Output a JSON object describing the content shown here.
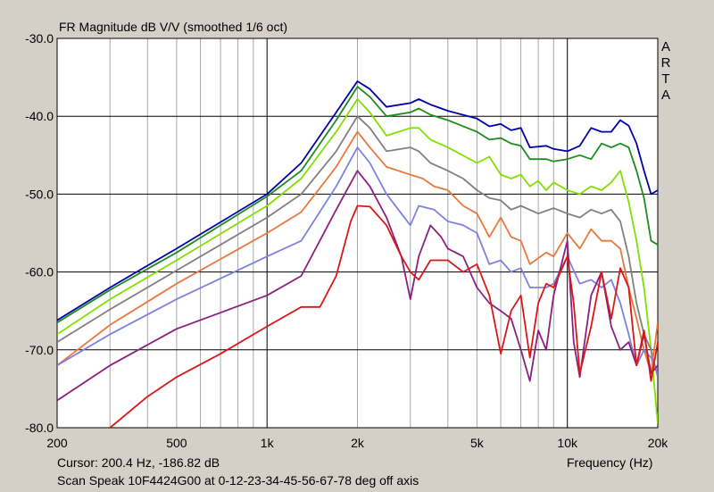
{
  "title": "FR Magnitude dB V/V (smoothed 1/6 oct)",
  "brand": [
    "A",
    "R",
    "T",
    "A"
  ],
  "cursor_readout": "Cursor: 200.4 Hz, -186.82 dB",
  "caption": "Scan Speak 10F4424G00 at 0-12-23-34-45-56-67-78 deg off axis",
  "colors": {
    "background": "#d4d0c8",
    "plot": "#ffffff",
    "grid_major": "#000000",
    "grid_minor": "#a8a8a8"
  },
  "chart_data": {
    "type": "line",
    "title": "FR Magnitude dB V/V (smoothed 1/6 oct)",
    "xlabel": "Frequency (Hz)",
    "ylabel": "",
    "xscale": "log",
    "xlim": [
      200,
      20000
    ],
    "ylim": [
      -80,
      -30
    ],
    "grid": true,
    "x_ticks": [
      {
        "v": 200,
        "label": "200"
      },
      {
        "v": 500,
        "label": "500"
      },
      {
        "v": 1000,
        "label": "1k"
      },
      {
        "v": 2000,
        "label": "2k"
      },
      {
        "v": 5000,
        "label": "5k"
      },
      {
        "v": 10000,
        "label": "10k"
      },
      {
        "v": 20000,
        "label": "20k"
      }
    ],
    "x_major_lines": [
      1000,
      10000
    ],
    "x_minor_lines": [
      300,
      400,
      500,
      600,
      700,
      800,
      900,
      2000,
      3000,
      4000,
      5000,
      6000,
      7000,
      8000,
      9000
    ],
    "y_ticks": [
      {
        "v": -30,
        "label": "-30.0"
      },
      {
        "v": -40,
        "label": "-40.0"
      },
      {
        "v": -50,
        "label": "-50.0"
      },
      {
        "v": -60,
        "label": "-60.0"
      },
      {
        "v": -70,
        "label": "-70.0"
      },
      {
        "v": -80,
        "label": "-80.0"
      }
    ],
    "series": [
      {
        "color": "#0000a8",
        "points": [
          [
            200,
            -66.2
          ],
          [
            300,
            -62
          ],
          [
            500,
            -57
          ],
          [
            1000,
            -50
          ],
          [
            1300,
            -46
          ],
          [
            1700,
            -39.5
          ],
          [
            2000,
            -35.5
          ],
          [
            2200,
            -36.5
          ],
          [
            2500,
            -38.8
          ],
          [
            3000,
            -38.3
          ],
          [
            3200,
            -37.8
          ],
          [
            3500,
            -38.5
          ],
          [
            4000,
            -39.3
          ],
          [
            5000,
            -40.3
          ],
          [
            5500,
            -41.3
          ],
          [
            6000,
            -41
          ],
          [
            6500,
            -41.8
          ],
          [
            7000,
            -41.5
          ],
          [
            7500,
            -44
          ],
          [
            8500,
            -43.8
          ],
          [
            9000,
            -44.2
          ],
          [
            10000,
            -44.5
          ],
          [
            11000,
            -43.8
          ],
          [
            12000,
            -41.5
          ],
          [
            13000,
            -42
          ],
          [
            14000,
            -42
          ],
          [
            15000,
            -40.5
          ],
          [
            16000,
            -41.2
          ],
          [
            17000,
            -43.5
          ],
          [
            18000,
            -47
          ],
          [
            19000,
            -50
          ],
          [
            20000,
            -49.5
          ]
        ]
      },
      {
        "color": "#1e8c1e",
        "points": [
          [
            200,
            -66.5
          ],
          [
            300,
            -62.3
          ],
          [
            500,
            -57.5
          ],
          [
            1000,
            -50.3
          ],
          [
            1300,
            -47
          ],
          [
            1700,
            -40.5
          ],
          [
            2000,
            -36.2
          ],
          [
            2200,
            -37.5
          ],
          [
            2500,
            -40
          ],
          [
            3000,
            -39.5
          ],
          [
            3200,
            -39
          ],
          [
            3500,
            -39.8
          ],
          [
            4000,
            -40.5
          ],
          [
            5000,
            -42
          ],
          [
            5500,
            -43
          ],
          [
            6000,
            -42.8
          ],
          [
            6500,
            -43.5
          ],
          [
            7000,
            -43.8
          ],
          [
            7500,
            -45.5
          ],
          [
            8500,
            -45.5
          ],
          [
            9000,
            -45.8
          ],
          [
            10000,
            -45.5
          ],
          [
            11000,
            -45
          ],
          [
            12000,
            -45.5
          ],
          [
            13000,
            -43.5
          ],
          [
            14000,
            -44
          ],
          [
            15000,
            -43.5
          ],
          [
            16000,
            -44
          ],
          [
            17000,
            -47
          ],
          [
            18000,
            -50.5
          ],
          [
            19000,
            -56
          ],
          [
            20000,
            -56.5
          ]
        ]
      },
      {
        "color": "#80e000",
        "points": [
          [
            200,
            -68
          ],
          [
            300,
            -63.5
          ],
          [
            500,
            -58.5
          ],
          [
            1000,
            -51.5
          ],
          [
            1300,
            -48
          ],
          [
            1700,
            -42
          ],
          [
            2000,
            -37.8
          ],
          [
            2200,
            -39.5
          ],
          [
            2500,
            -42.5
          ],
          [
            3000,
            -41.5
          ],
          [
            3200,
            -41.5
          ],
          [
            3500,
            -43
          ],
          [
            4000,
            -44
          ],
          [
            5000,
            -46
          ],
          [
            5500,
            -45.2
          ],
          [
            6000,
            -47.5
          ],
          [
            6500,
            -48
          ],
          [
            7000,
            -47.5
          ],
          [
            7500,
            -49
          ],
          [
            8000,
            -48.3
          ],
          [
            8500,
            -49.5
          ],
          [
            9000,
            -48.5
          ],
          [
            10000,
            -49.5
          ],
          [
            11000,
            -50
          ],
          [
            12000,
            -49
          ],
          [
            13000,
            -49.5
          ],
          [
            14000,
            -48.5
          ],
          [
            15000,
            -47
          ],
          [
            16000,
            -51
          ],
          [
            17000,
            -56
          ],
          [
            18000,
            -62
          ],
          [
            19000,
            -70
          ],
          [
            20000,
            -79.5
          ]
        ]
      },
      {
        "color": "#808080",
        "points": [
          [
            200,
            -69
          ],
          [
            300,
            -64.8
          ],
          [
            500,
            -59.8
          ],
          [
            1000,
            -53
          ],
          [
            1300,
            -50
          ],
          [
            1700,
            -44.5
          ],
          [
            2000,
            -40
          ],
          [
            2200,
            -41.5
          ],
          [
            2500,
            -44.5
          ],
          [
            3000,
            -44
          ],
          [
            3200,
            -44.5
          ],
          [
            3500,
            -46
          ],
          [
            4000,
            -47
          ],
          [
            4500,
            -48
          ],
          [
            5000,
            -49.5
          ],
          [
            5500,
            -50.5
          ],
          [
            6000,
            -50.8
          ],
          [
            6500,
            -52
          ],
          [
            7000,
            -51.5
          ],
          [
            8000,
            -52.5
          ],
          [
            9000,
            -51.8
          ],
          [
            10000,
            -52.5
          ],
          [
            11000,
            -53
          ],
          [
            12000,
            -52
          ],
          [
            13000,
            -52.5
          ],
          [
            14000,
            -52
          ],
          [
            15000,
            -53.5
          ],
          [
            16000,
            -58
          ],
          [
            17000,
            -64
          ],
          [
            18000,
            -68
          ],
          [
            19000,
            -70
          ],
          [
            20000,
            -73.5
          ]
        ]
      },
      {
        "color": "#e8783c",
        "points": [
          [
            200,
            -72
          ],
          [
            300,
            -66.8
          ],
          [
            500,
            -61.5
          ],
          [
            1000,
            -55
          ],
          [
            1300,
            -52.3
          ],
          [
            1700,
            -46.5
          ],
          [
            2000,
            -42
          ],
          [
            2200,
            -44
          ],
          [
            2500,
            -46.5
          ],
          [
            3000,
            -47.5
          ],
          [
            3300,
            -48
          ],
          [
            3600,
            -49
          ],
          [
            4000,
            -49.5
          ],
          [
            4500,
            -51.5
          ],
          [
            5000,
            -52.5
          ],
          [
            5500,
            -55.5
          ],
          [
            6000,
            -53
          ],
          [
            6500,
            -55.5
          ],
          [
            7000,
            -56
          ],
          [
            7500,
            -59
          ],
          [
            8500,
            -57.5
          ],
          [
            9000,
            -58
          ],
          [
            10000,
            -55
          ],
          [
            11000,
            -57
          ],
          [
            12000,
            -54.5
          ],
          [
            13000,
            -56
          ],
          [
            14000,
            -56
          ],
          [
            15000,
            -57
          ],
          [
            16000,
            -62
          ],
          [
            17000,
            -66
          ],
          [
            18000,
            -70
          ],
          [
            19000,
            -73
          ],
          [
            20000,
            -66.5
          ]
        ]
      },
      {
        "color": "#8080e0",
        "points": [
          [
            200,
            -72
          ],
          [
            300,
            -68
          ],
          [
            500,
            -63.5
          ],
          [
            1000,
            -58
          ],
          [
            1300,
            -56
          ],
          [
            1700,
            -49
          ],
          [
            2000,
            -44
          ],
          [
            2200,
            -46
          ],
          [
            2500,
            -50
          ],
          [
            2800,
            -52.5
          ],
          [
            3000,
            -54
          ],
          [
            3200,
            -51.5
          ],
          [
            3600,
            -52
          ],
          [
            4000,
            -53.5
          ],
          [
            4500,
            -54
          ],
          [
            5000,
            -55
          ],
          [
            5500,
            -59
          ],
          [
            6000,
            -58.5
          ],
          [
            6500,
            -60
          ],
          [
            7000,
            -59.5
          ],
          [
            7500,
            -62
          ],
          [
            8500,
            -62
          ],
          [
            9000,
            -61.5
          ],
          [
            10000,
            -58
          ],
          [
            11000,
            -61.5
          ],
          [
            12000,
            -61
          ],
          [
            13000,
            -62
          ],
          [
            14000,
            -61
          ],
          [
            15000,
            -64
          ],
          [
            16000,
            -68
          ],
          [
            17000,
            -72
          ],
          [
            18000,
            -70
          ],
          [
            19000,
            -71
          ],
          [
            20000,
            -73
          ]
        ]
      },
      {
        "color": "#8c2080",
        "points": [
          [
            200,
            -76.5
          ],
          [
            300,
            -72
          ],
          [
            500,
            -67.3
          ],
          [
            1000,
            -63
          ],
          [
            1300,
            -60.5
          ],
          [
            1700,
            -52
          ],
          [
            2000,
            -47
          ],
          [
            2200,
            -49
          ],
          [
            2500,
            -53
          ],
          [
            2800,
            -58
          ],
          [
            3000,
            -63.5
          ],
          [
            3200,
            -58
          ],
          [
            3500,
            -54
          ],
          [
            3800,
            -55.5
          ],
          [
            4000,
            -57
          ],
          [
            4500,
            -58
          ],
          [
            5000,
            -62
          ],
          [
            5500,
            -64
          ],
          [
            6000,
            -65
          ],
          [
            6500,
            -66
          ],
          [
            7000,
            -70
          ],
          [
            7500,
            -74
          ],
          [
            8000,
            -67.5
          ],
          [
            8500,
            -70
          ],
          [
            9000,
            -63
          ],
          [
            10000,
            -56
          ],
          [
            10500,
            -69
          ],
          [
            11000,
            -73.5
          ],
          [
            12000,
            -63
          ],
          [
            13000,
            -60
          ],
          [
            14000,
            -67
          ],
          [
            15000,
            -70
          ],
          [
            16000,
            -69
          ],
          [
            17000,
            -72
          ],
          [
            18000,
            -68
          ],
          [
            19000,
            -73
          ],
          [
            20000,
            -72
          ]
        ]
      },
      {
        "color": "#d81818",
        "points": [
          [
            300,
            -80
          ],
          [
            400,
            -76
          ],
          [
            500,
            -73.5
          ],
          [
            700,
            -70.5
          ],
          [
            1000,
            -67
          ],
          [
            1300,
            -64.5
          ],
          [
            1500,
            -64.5
          ],
          [
            1700,
            -60.5
          ],
          [
            1900,
            -53.5
          ],
          [
            2000,
            -51.5
          ],
          [
            2200,
            -51.6
          ],
          [
            2500,
            -54
          ],
          [
            2800,
            -58
          ],
          [
            3000,
            -60
          ],
          [
            3200,
            -61
          ],
          [
            3500,
            -58.5
          ],
          [
            4000,
            -58.5
          ],
          [
            4500,
            -60
          ],
          [
            5000,
            -59
          ],
          [
            5500,
            -63
          ],
          [
            6000,
            -70.5
          ],
          [
            6500,
            -65
          ],
          [
            7000,
            -63
          ],
          [
            7500,
            -71
          ],
          [
            8000,
            -64
          ],
          [
            8500,
            -61.5
          ],
          [
            9000,
            -62
          ],
          [
            10000,
            -58
          ],
          [
            10500,
            -64
          ],
          [
            11000,
            -73
          ],
          [
            12000,
            -67
          ],
          [
            13000,
            -60
          ],
          [
            14000,
            -66
          ],
          [
            15000,
            -59.5
          ],
          [
            16000,
            -62
          ],
          [
            17000,
            -72
          ],
          [
            18000,
            -67.5
          ],
          [
            19000,
            -74
          ],
          [
            20000,
            -69
          ]
        ]
      }
    ]
  }
}
